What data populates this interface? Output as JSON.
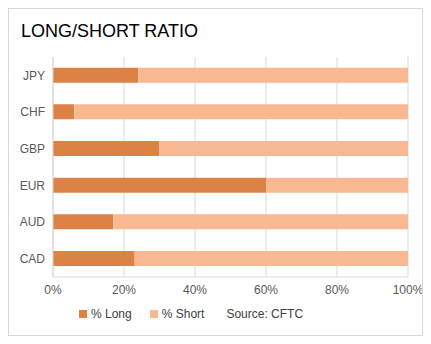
{
  "chart_data": {
    "type": "bar",
    "title": "LONG/SHORT RATIO",
    "orientation": "horizontal",
    "stacked": true,
    "categories": [
      "JPY",
      "CHF",
      "GBP",
      "EUR",
      "AUD",
      "CAD"
    ],
    "series": [
      {
        "name": "% Long",
        "color": "#dc8244",
        "values": [
          24,
          6,
          30,
          60,
          17,
          23
        ]
      },
      {
        "name": "% Short",
        "color": "#f8b992",
        "values": [
          76,
          94,
          70,
          40,
          83,
          77
        ]
      }
    ],
    "xlim": [
      0,
      100
    ],
    "xticks": [
      {
        "value": 0,
        "label": "0%"
      },
      {
        "value": 20,
        "label": "20%"
      },
      {
        "value": 40,
        "label": "40%"
      },
      {
        "value": 60,
        "label": "60%"
      },
      {
        "value": 80,
        "label": "80%"
      },
      {
        "value": 100,
        "label": "100%"
      }
    ],
    "grid": true,
    "legend": "bottom",
    "annotation": "Source: CFTC"
  }
}
